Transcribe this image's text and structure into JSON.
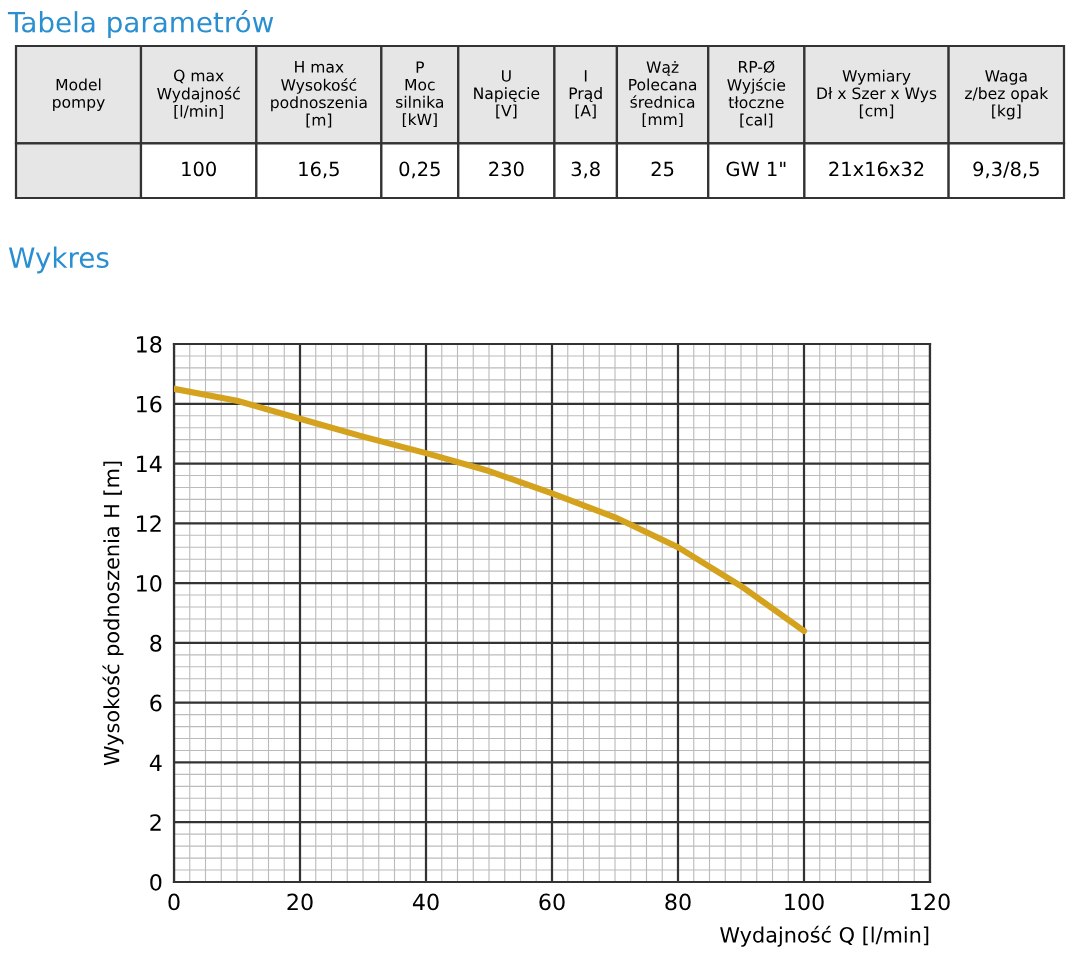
{
  "chart_data": [
    {
      "type": "other",
      "title": "Tabela parametrów",
      "annotations": [
        "Model\npompy",
        "Q max\nWydajność\n[l/min]",
        "H max\nWysokość\npodnoszenia\n[m]",
        "P\nMoc\nsilnika\n[kW]",
        "U\nNapięcie\n[V]",
        "I\nPrąd\n[A]",
        "Wąż\nPolecana\nśrednica\n[mm]",
        "RP-Ø\nWyjście\ntłoczne\n[cal]",
        "Wymiary\nDł x Szer x Wys\n[cm]",
        "Waga\nz/bez opak\n[kg]",
        "100",
        "16,5",
        "0,25",
        "230",
        "3,8",
        "25",
        "GW 1\"",
        "21x16x32",
        "9,3/8,5"
      ]
    },
    {
      "type": "line",
      "title": "Wykres",
      "xlabel": "Wydajność Q [l/min]",
      "ylabel": "Wysokość podnoszenia H [m]",
      "xlim": [
        0,
        120
      ],
      "ylim": [
        0,
        18
      ],
      "xticks": [
        0,
        20,
        40,
        60,
        80,
        100,
        120
      ],
      "yticks": [
        0,
        2,
        4,
        6,
        8,
        10,
        12,
        14,
        16,
        18
      ],
      "grid": true,
      "series": [
        {
          "color": "#d4a21c",
          "x": [
            0,
            10,
            20,
            30,
            40,
            50,
            60,
            70,
            80,
            90,
            100
          ],
          "values": [
            16.5,
            16.1,
            15.5,
            14.9,
            14.35,
            13.75,
            13.0,
            12.2,
            11.2,
            9.9,
            8.4
          ]
        }
      ]
    }
  ]
}
